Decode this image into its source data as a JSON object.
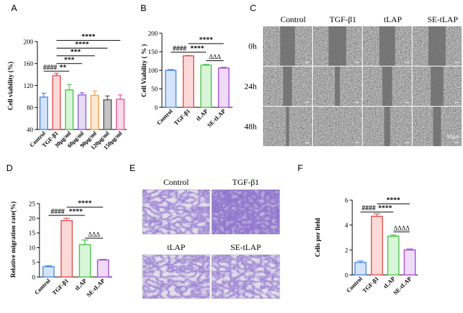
{
  "panels": {
    "A": "A",
    "B": "B",
    "C": "C",
    "D": "D",
    "E": "E",
    "F": "F"
  },
  "chart_data": [
    {
      "panel": "A",
      "type": "bar",
      "ylabel": "Cell viability (%)",
      "ylim": [
        40,
        200
      ],
      "yticks": [
        40,
        80,
        120,
        160,
        200
      ],
      "categories": [
        "Control",
        "TGF-β1",
        "30μg/ml",
        "60μg/ml",
        "90μg/ml",
        "120μg/ml",
        "150μg/ml"
      ],
      "values": [
        99,
        138,
        112,
        103,
        102,
        94,
        95
      ],
      "errors": [
        7,
        4,
        10,
        4,
        8,
        7,
        8
      ],
      "colors": [
        "#4a86e8",
        "#e84a4a",
        "#49c449",
        "#8a5fd8",
        "#f5a04a",
        "#555555",
        "#e8559a"
      ],
      "fills": [
        "#d5e4fb",
        "#fbd9d9",
        "#d9f5d9",
        "#e6dcf7",
        "#fde8d3",
        "#c4c4c4",
        "#fbd9e8"
      ],
      "annotations": [
        {
          "text": "####",
          "from": 0,
          "to": 1,
          "y": 146
        },
        {
          "text": "**",
          "from": 1,
          "to": 2,
          "y": 146
        },
        {
          "text": "***",
          "from": 1,
          "to": 3,
          "y": 160
        },
        {
          "text": "***",
          "from": 1,
          "to": 4,
          "y": 174
        },
        {
          "text": "****",
          "from": 1,
          "to": 5,
          "y": 188
        },
        {
          "text": "****",
          "from": 1,
          "to": 6,
          "y": 202
        }
      ]
    },
    {
      "panel": "B",
      "type": "bar",
      "ylabel": "Cell Viability ( % )",
      "ylim": [
        0,
        200
      ],
      "yticks": [
        0,
        50,
        100,
        150,
        200
      ],
      "categories": [
        "Control",
        "TGF-β1",
        "tLAP",
        "SE-tLAP"
      ],
      "values": [
        100,
        139,
        114,
        106
      ],
      "errors": [
        2,
        1,
        2,
        2
      ],
      "colors": [
        "#4a86e8",
        "#e84a4a",
        "#49c449",
        "#a64ad8"
      ],
      "fills": [
        "#d5e4fb",
        "#fbd9d9",
        "#d9f5d9",
        "#eedbf7"
      ],
      "annotations": [
        {
          "text": "####",
          "from": 0,
          "to": 1,
          "y": 149
        },
        {
          "text": "****",
          "from": 1,
          "to": 2,
          "y": 149
        },
        {
          "text": "****",
          "from": 1,
          "to": 3,
          "y": 172
        },
        {
          "text": "ΔΔΔ",
          "from": 2,
          "to": 3,
          "y": 126,
          "style": "delta"
        }
      ]
    },
    {
      "panel": "D",
      "type": "bar",
      "ylabel": "Relative migration rate(%)",
      "ylim": [
        0,
        25
      ],
      "yticks": [
        0,
        5,
        10,
        15,
        20,
        25
      ],
      "categories": [
        "Control",
        "TGF-β1",
        "tLAP",
        "SE-tLAP"
      ],
      "values": [
        3.5,
        19.2,
        11.0,
        5.8
      ],
      "errors": [
        0.3,
        0.8,
        1.6,
        0.2
      ],
      "colors": [
        "#4a86e8",
        "#e84a4a",
        "#49c449",
        "#a64ad8"
      ],
      "fills": [
        "#d5e4fb",
        "#fbd9d9",
        "#d9f5d9",
        "#eedbf7"
      ],
      "annotations": [
        {
          "text": "####",
          "from": 0,
          "to": 1,
          "y": 21.0
        },
        {
          "text": "****",
          "from": 1,
          "to": 2,
          "y": 21.0
        },
        {
          "text": "****",
          "from": 1,
          "to": 3,
          "y": 23.8
        },
        {
          "text": "ΔΔΔ",
          "from": 2,
          "to": 3,
          "y": 13.2,
          "style": "delta"
        }
      ]
    },
    {
      "panel": "F",
      "type": "bar",
      "ylabel": "Cells per field",
      "ylim": [
        0,
        6
      ],
      "yticks": [
        0,
        2,
        4,
        6
      ],
      "categories": [
        "Control",
        "TGF-β1",
        "tLAP",
        "SE-tLAP"
      ],
      "values": [
        1.0,
        4.7,
        3.1,
        2.0
      ],
      "errors": [
        0.12,
        0.2,
        0.1,
        0.08
      ],
      "colors": [
        "#4a86e8",
        "#e84a4a",
        "#49c449",
        "#a64ad8"
      ],
      "fills": [
        "#d5e4fb",
        "#fbd9d9",
        "#d9f5d9",
        "#eedbf7"
      ],
      "annotations": [
        {
          "text": "####",
          "from": 0,
          "to": 1,
          "y": 5.05
        },
        {
          "text": "****",
          "from": 1,
          "to": 2,
          "y": 5.05
        },
        {
          "text": "****",
          "from": 1,
          "to": 3,
          "y": 5.7
        },
        {
          "text": "ΔΔΔΔ",
          "from": 2,
          "to": 3,
          "y": 3.45,
          "style": "delta"
        }
      ]
    }
  ],
  "panel_C": {
    "columns": [
      "Control",
      "TGF-β1",
      "tLAP",
      "SE-tLAP"
    ],
    "rows": [
      "0h",
      "24h",
      "48h"
    ],
    "scale_bar": "50μm"
  },
  "panel_E": {
    "labels": [
      "Control",
      "TGF-β1",
      "tLAP",
      "SE-tLAP"
    ],
    "scale_bar": "50μm"
  }
}
